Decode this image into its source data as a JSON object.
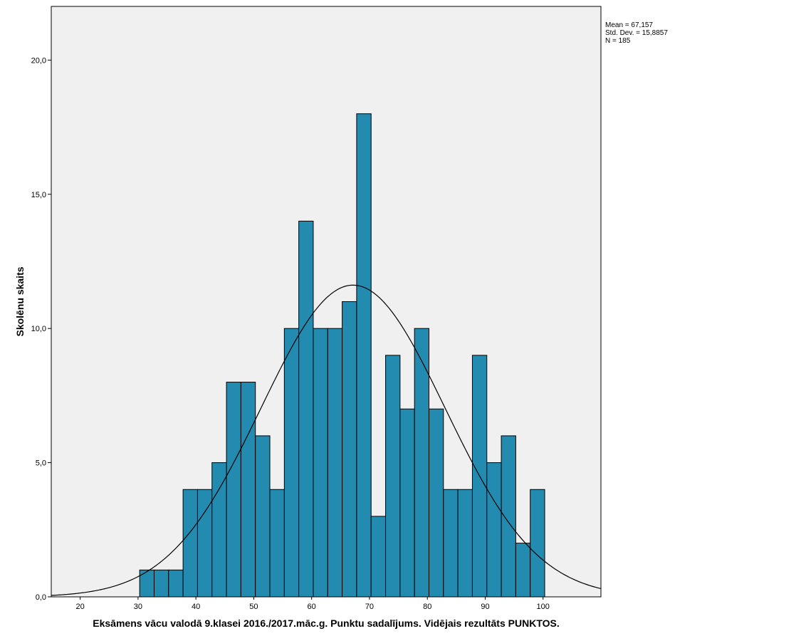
{
  "chart_data": {
    "type": "bar",
    "title": "",
    "xlabel": "Eksāmens vācu valodā 9.klasei 2016./2017.māc.g. Punktu sadalījums. Vidējais rezultāts PUNKTOS.",
    "ylabel": "Skolēnu skaits",
    "xlim": [
      15,
      110
    ],
    "ylim": [
      0,
      22
    ],
    "x_ticks": [
      20,
      30,
      40,
      50,
      60,
      70,
      80,
      90,
      100
    ],
    "x_tick_labels": [
      "20",
      "30",
      "40",
      "50",
      "60",
      "70",
      "80",
      "90",
      "100"
    ],
    "y_ticks": [
      0,
      5,
      10,
      15,
      20
    ],
    "y_tick_labels": [
      "0,0",
      "5,0",
      "10,0",
      "15,0",
      "20,0"
    ],
    "bins": [
      {
        "x0": 30.28,
        "x1": 32.78,
        "count": 1
      },
      {
        "x0": 32.78,
        "x1": 35.28,
        "count": 1
      },
      {
        "x0": 35.28,
        "x1": 37.78,
        "count": 1
      },
      {
        "x0": 37.78,
        "x1": 40.28,
        "count": 4
      },
      {
        "x0": 40.28,
        "x1": 42.78,
        "count": 4
      },
      {
        "x0": 42.78,
        "x1": 45.28,
        "count": 5
      },
      {
        "x0": 45.28,
        "x1": 47.78,
        "count": 8
      },
      {
        "x0": 47.78,
        "x1": 50.28,
        "count": 8
      },
      {
        "x0": 50.28,
        "x1": 52.78,
        "count": 6
      },
      {
        "x0": 52.78,
        "x1": 55.28,
        "count": 4
      },
      {
        "x0": 55.28,
        "x1": 57.78,
        "count": 10
      },
      {
        "x0": 57.78,
        "x1": 60.28,
        "count": 14
      },
      {
        "x0": 60.28,
        "x1": 62.78,
        "count": 10
      },
      {
        "x0": 62.78,
        "x1": 65.28,
        "count": 10
      },
      {
        "x0": 65.28,
        "x1": 67.78,
        "count": 11
      },
      {
        "x0": 67.78,
        "x1": 70.28,
        "count": 18
      },
      {
        "x0": 70.28,
        "x1": 72.78,
        "count": 3
      },
      {
        "x0": 72.78,
        "x1": 75.28,
        "count": 9
      },
      {
        "x0": 75.28,
        "x1": 77.78,
        "count": 7
      },
      {
        "x0": 77.78,
        "x1": 80.28,
        "count": 10
      },
      {
        "x0": 80.28,
        "x1": 82.78,
        "count": 7
      },
      {
        "x0": 82.78,
        "x1": 85.28,
        "count": 4
      },
      {
        "x0": 85.28,
        "x1": 87.78,
        "count": 4
      },
      {
        "x0": 87.78,
        "x1": 90.28,
        "count": 9
      },
      {
        "x0": 90.28,
        "x1": 92.78,
        "count": 5
      },
      {
        "x0": 92.78,
        "x1": 95.28,
        "count": 6
      },
      {
        "x0": 95.28,
        "x1": 97.78,
        "count": 2
      },
      {
        "x0": 97.78,
        "x1": 100.28,
        "count": 4
      }
    ],
    "normal_curve": {
      "mean": 67.157,
      "std_dev": 15.8857,
      "n": 185,
      "bin_width": 2.5
    },
    "stats": [
      "Mean = 67,157",
      "Std. Dev. = 15,8857",
      "N = 185"
    ],
    "grid": false,
    "legend": "top-right",
    "colors": {
      "bar_fill": "#248BB0",
      "bar_stroke": "#000000",
      "plot_background": "#F0F0F0",
      "curve": "#000000"
    }
  }
}
